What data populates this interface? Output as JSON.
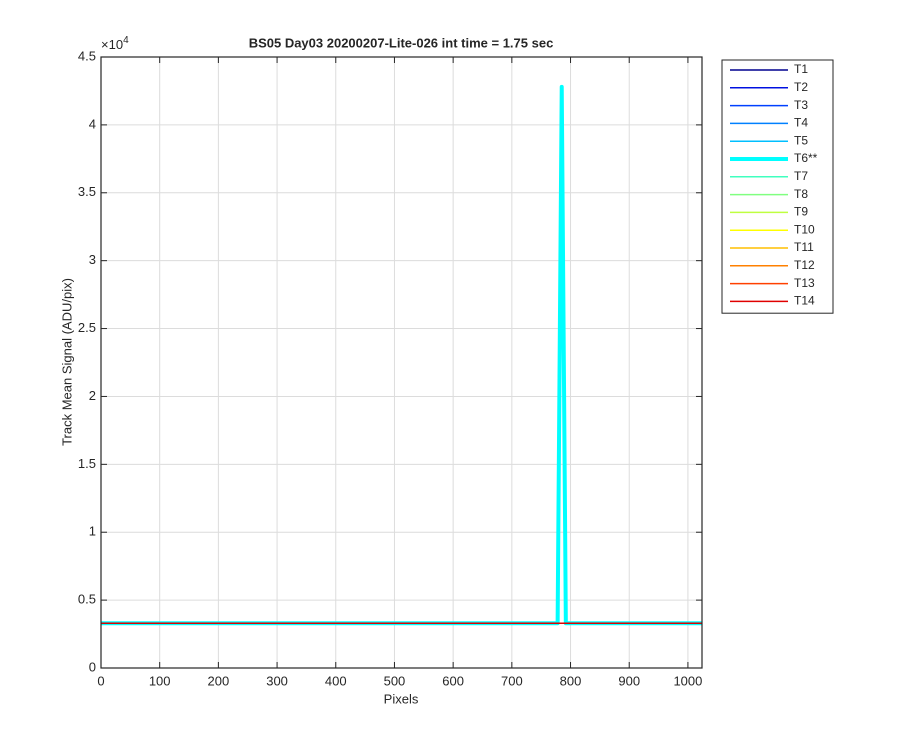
{
  "chart_data": {
    "type": "line",
    "title": "BS05 Day03 20200207-Lite-026 int time = 1.75 sec",
    "xlabel": "Pixels",
    "ylabel": "Track Mean Signal (ADU/pix)",
    "y_exponent_base": "×10",
    "y_exponent": "4",
    "x": [
      0,
      778,
      785,
      792,
      1024
    ],
    "xlim": [
      0,
      1024
    ],
    "xticks": [
      0,
      100,
      200,
      300,
      400,
      500,
      600,
      700,
      800,
      900,
      1000
    ],
    "ylim": [
      0,
      4.5
    ],
    "yticks": [
      0,
      0.5,
      1,
      1.5,
      2,
      2.5,
      3,
      3.5,
      4,
      4.5
    ],
    "grid": true,
    "legend": "northeastoutside",
    "series": [
      {
        "name": "T1",
        "color": "#00008f",
        "values": [
          0.33,
          0.33,
          0.33,
          0.33,
          0.33
        ]
      },
      {
        "name": "T2",
        "color": "#0010e0",
        "values": [
          0.33,
          0.33,
          0.33,
          0.33,
          0.33
        ]
      },
      {
        "name": "T3",
        "color": "#0040ff",
        "values": [
          0.33,
          0.33,
          0.33,
          0.33,
          0.33
        ]
      },
      {
        "name": "T4",
        "color": "#0080ff",
        "values": [
          0.33,
          0.33,
          0.33,
          0.33,
          0.33
        ]
      },
      {
        "name": "T5",
        "color": "#00bfff",
        "values": [
          0.33,
          0.33,
          0.33,
          0.33,
          0.33
        ]
      },
      {
        "name": "T6**",
        "color": "#00ffff",
        "width": 4,
        "values": [
          0.33,
          0.33,
          4.28,
          0.33,
          0.33
        ]
      },
      {
        "name": "T7",
        "color": "#40ffbf",
        "values": [
          0.33,
          0.33,
          0.33,
          0.33,
          0.33
        ]
      },
      {
        "name": "T8",
        "color": "#80ff80",
        "values": [
          0.33,
          0.33,
          0.33,
          0.33,
          0.33
        ]
      },
      {
        "name": "T9",
        "color": "#bfff40",
        "values": [
          0.33,
          0.33,
          0.33,
          0.33,
          0.33
        ]
      },
      {
        "name": "T10",
        "color": "#ffff00",
        "values": [
          0.33,
          0.33,
          0.33,
          0.33,
          0.33
        ]
      },
      {
        "name": "T11",
        "color": "#ffbf00",
        "values": [
          0.33,
          0.33,
          0.33,
          0.33,
          0.33
        ]
      },
      {
        "name": "T12",
        "color": "#ff8000",
        "values": [
          0.33,
          0.33,
          0.33,
          0.33,
          0.33
        ]
      },
      {
        "name": "T13",
        "color": "#ff4000",
        "values": [
          0.33,
          0.33,
          0.33,
          0.33,
          0.33
        ]
      },
      {
        "name": "T14",
        "color": "#e00000",
        "values": [
          0.33,
          0.33,
          0.33,
          0.33,
          0.33
        ]
      }
    ]
  }
}
